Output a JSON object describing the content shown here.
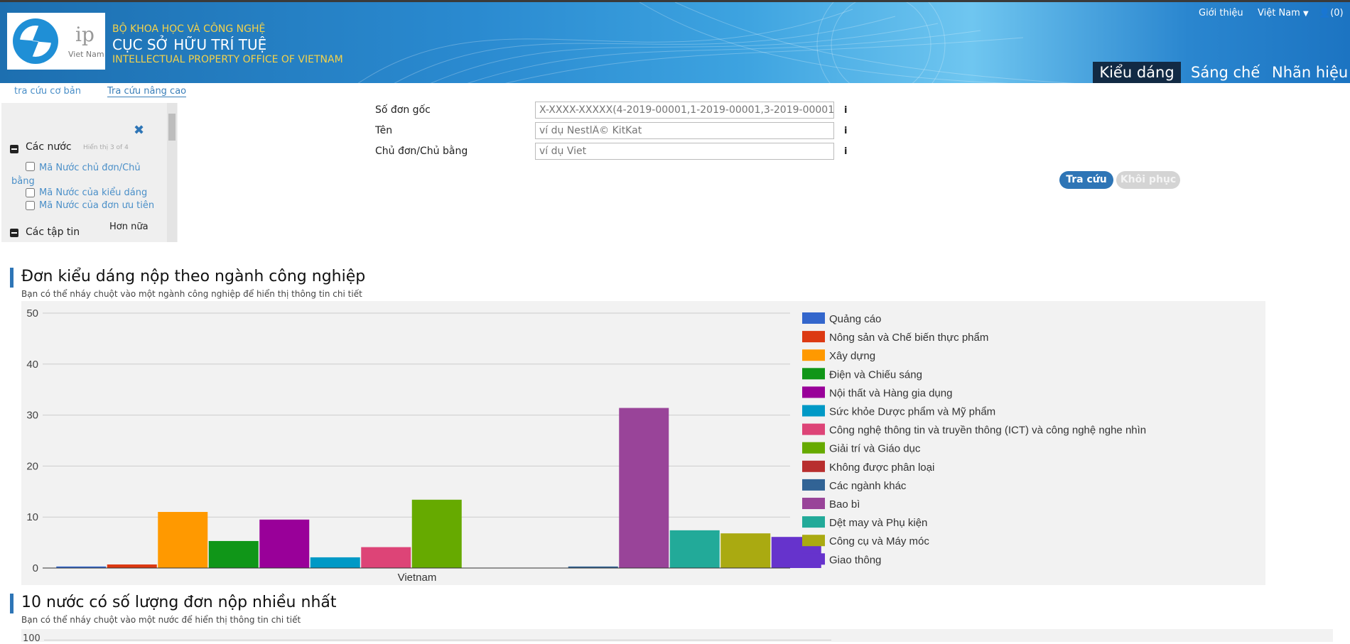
{
  "header": {
    "logo_ip": "ip",
    "logo_country": "Viet Nam",
    "org_line1": "BỘ KHOA HỌC VÀ CÔNG NGHỆ",
    "org_line2": "CỤC SỞ HỮU TRÍ TUỆ",
    "org_line3": "INTELLECTUAL PROPERTY OFFICE OF VIETNAM",
    "about": "Giới thiệu",
    "language": "Việt Nam",
    "user": "(0)"
  },
  "menu": {
    "active": "Kiểu dáng",
    "items": [
      "Sáng chế",
      "Nhãn hiệu"
    ]
  },
  "subtabs": {
    "basic": "tra cứu cơ bản",
    "advanced": "Tra cứu nâng cao"
  },
  "filters": {
    "group1_title": "Các nước",
    "group1_hint": "Hiển thị 3 of 4",
    "option1": "Mã Nước chủ đơn/Chủ bằng",
    "option2": "Mã Nước của kiểu dáng",
    "option3": "Mã Nước của đơn ưu tiên",
    "more": "Hơn nữa",
    "group2_title": "Các tập tin"
  },
  "search": {
    "field1_label": "Số đơn gốc",
    "field1_placeholder": "X-XXXX-XXXXX(4-2019-00001,1-2019-00001,3-2019-00001,..)",
    "field2_label": "Tên",
    "field2_placeholder": "ví dụ NestlÃ© KitKat",
    "field3_label": "Chủ đơn/Chủ bằng",
    "field3_placeholder": "ví dụ Viet",
    "search_button": "Tra cứu",
    "reset_button": "Khôi phục"
  },
  "section1": {
    "title": "Đơn kiểu dáng nộp theo ngành công nghiệp",
    "subtitle": "Bạn có thể nháy chuột vào một ngành công nghiệp để hiển thị thông tin chi tiết"
  },
  "section2": {
    "title": "10 nước có số lượng đơn nộp nhiều nhất",
    "subtitle": "Bạn có thể nháy chuột vào một nước để hiển thị thông tin chi tiết",
    "ymax_label": "100"
  },
  "chart_data": {
    "type": "bar",
    "categories": [
      "Vietnam"
    ],
    "ylim": [
      0,
      50
    ],
    "yticks": [
      0,
      10,
      20,
      30,
      40,
      50
    ],
    "grid": true,
    "legend_position": "right",
    "series": [
      {
        "name": "Quảng cáo",
        "color": "#3366cc",
        "values": [
          0.3
        ]
      },
      {
        "name": "Nông sản và Chế biến thực phẩm",
        "color": "#dc3912",
        "values": [
          0.7
        ]
      },
      {
        "name": "Xây dựng",
        "color": "#ff9900",
        "values": [
          11
        ]
      },
      {
        "name": "Điện và Chiếu sáng",
        "color": "#109618",
        "values": [
          5.3
        ]
      },
      {
        "name": "Nội thất và Hàng gia dụng",
        "color": "#990099",
        "values": [
          9.5
        ]
      },
      {
        "name": "Sức khỏe Dược phẩm và Mỹ phẩm",
        "color": "#0099c6",
        "values": [
          2.1
        ]
      },
      {
        "name": "Công nghệ thông tin và truyền thông (ICT) và công nghệ nghe nhìn",
        "color": "#dd4477",
        "values": [
          4.1
        ]
      },
      {
        "name": "Giải trí và Giáo dục",
        "color": "#66aa00",
        "values": [
          13.4
        ]
      },
      {
        "name": "Không được phân loại",
        "color": "#b82e2e",
        "values": [
          0
        ]
      },
      {
        "name": "Các ngành khác",
        "color": "#316395",
        "values": [
          0.3
        ]
      },
      {
        "name": "Bao bì",
        "color": "#994499",
        "values": [
          31.4
        ]
      },
      {
        "name": "Dệt may và Phụ kiện",
        "color": "#22aa99",
        "values": [
          7.4
        ]
      },
      {
        "name": "Công cụ và Máy móc",
        "color": "#aaaa11",
        "values": [
          6.8
        ]
      },
      {
        "name": "Giao thông",
        "color": "#6633cc",
        "values": [
          6.1
        ]
      }
    ]
  }
}
